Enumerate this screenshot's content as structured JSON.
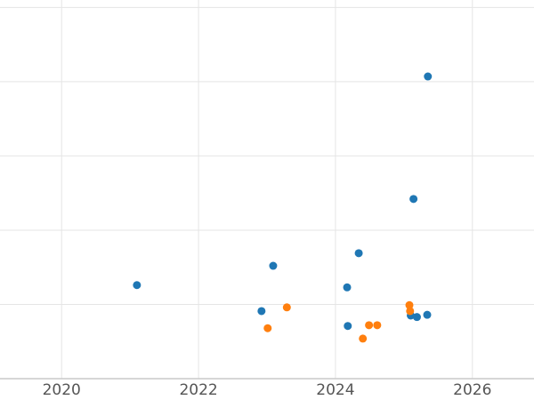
{
  "chart_data": {
    "type": "scatter",
    "title": "",
    "xlabel": "",
    "ylabel": "",
    "xlim": [
      2019.1,
      2026.9
    ],
    "ylim": [
      0,
      5.1
    ],
    "x_ticks": [
      2020,
      2022,
      2024,
      2026
    ],
    "y_gridlines": [
      1,
      2,
      3,
      4,
      5
    ],
    "grid": true,
    "legend_position": "none",
    "series": [
      {
        "name": "series-blue",
        "color": "#1f77b4",
        "points": [
          {
            "x": 2021.1,
            "y": 1.26
          },
          {
            "x": 2022.92,
            "y": 0.91
          },
          {
            "x": 2023.09,
            "y": 1.52
          },
          {
            "x": 2024.17,
            "y": 1.23
          },
          {
            "x": 2024.18,
            "y": 0.71
          },
          {
            "x": 2024.34,
            "y": 1.69
          },
          {
            "x": 2025.1,
            "y": 0.85
          },
          {
            "x": 2025.14,
            "y": 2.42
          },
          {
            "x": 2025.19,
            "y": 0.83
          },
          {
            "x": 2025.34,
            "y": 0.86
          },
          {
            "x": 2025.35,
            "y": 4.07
          }
        ]
      },
      {
        "name": "series-orange",
        "color": "#ff7f0e",
        "points": [
          {
            "x": 2023.01,
            "y": 0.68
          },
          {
            "x": 2023.29,
            "y": 0.96
          },
          {
            "x": 2024.4,
            "y": 0.54
          },
          {
            "x": 2024.49,
            "y": 0.72
          },
          {
            "x": 2024.61,
            "y": 0.72
          },
          {
            "x": 2025.08,
            "y": 0.99
          },
          {
            "x": 2025.09,
            "y": 0.91
          }
        ]
      }
    ],
    "colors": {
      "gridline": "#e5e5e5",
      "axis_line": "#c9c9c9",
      "tick_label": "#555555",
      "background": "#ffffff"
    },
    "marker_radius": 4.5
  }
}
